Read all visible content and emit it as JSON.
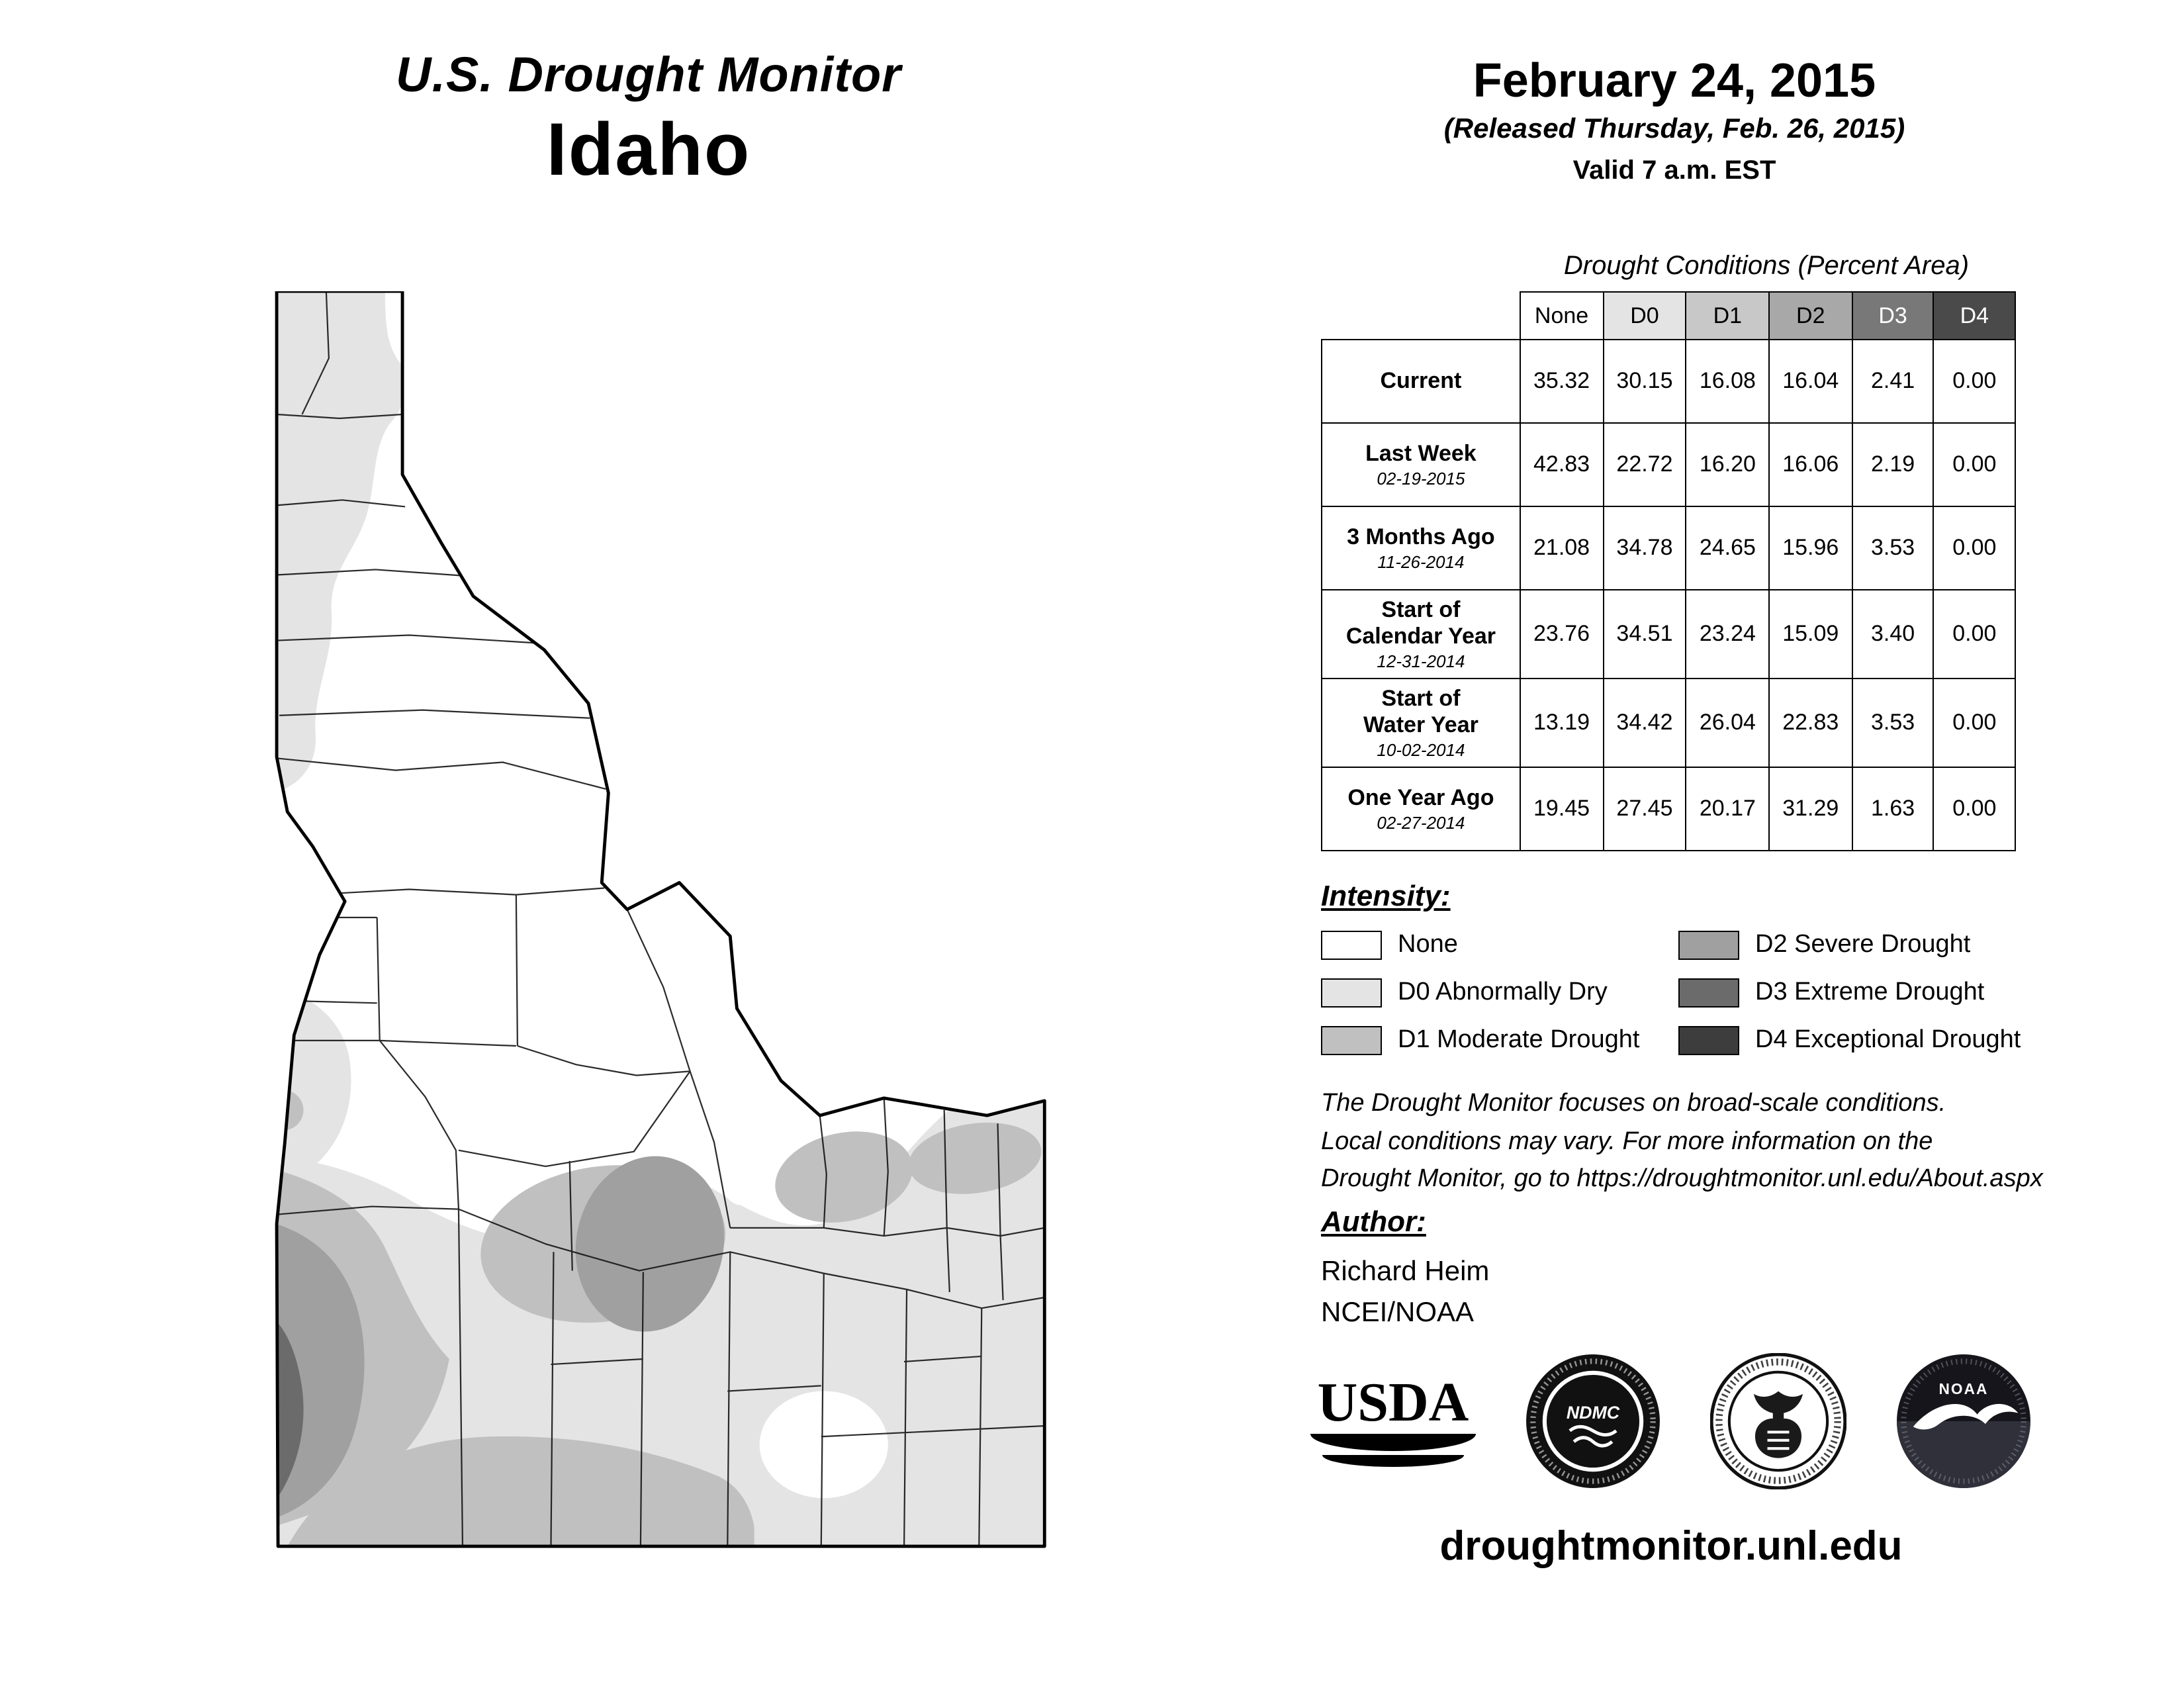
{
  "header": {
    "title": "U.S. Drought Monitor",
    "region": "Idaho",
    "date": "February 24, 2015",
    "released": "(Released Thursday, Feb. 26, 2015)",
    "valid": "Valid 7 a.m. EST"
  },
  "table": {
    "title": "Drought Conditions (Percent Area)",
    "columns": [
      {
        "label": "None",
        "bg": "#ffffff",
        "fg": "#000000"
      },
      {
        "label": "D0",
        "bg": "#e4e4e4",
        "fg": "#000000"
      },
      {
        "label": "D1",
        "bg": "#c8c8c8",
        "fg": "#000000"
      },
      {
        "label": "D2",
        "bg": "#a8a8a8",
        "fg": "#000000"
      },
      {
        "label": "D3",
        "bg": "#787878",
        "fg": "#ffffff"
      },
      {
        "label": "D4",
        "bg": "#4a4a4a",
        "fg": "#ffffff"
      }
    ],
    "rows": [
      {
        "label": "Current",
        "sublabel": "",
        "values": [
          "35.32",
          "30.15",
          "16.08",
          "16.04",
          "2.41",
          "0.00"
        ]
      },
      {
        "label": "Last Week",
        "sublabel": "02-19-2015",
        "values": [
          "42.83",
          "22.72",
          "16.20",
          "16.06",
          "2.19",
          "0.00"
        ]
      },
      {
        "label": "3 Months Ago",
        "sublabel": "11-26-2014",
        "values": [
          "21.08",
          "34.78",
          "24.65",
          "15.96",
          "3.53",
          "0.00"
        ]
      },
      {
        "label": "Start of\nCalendar Year",
        "sublabel": "12-31-2014",
        "values": [
          "23.76",
          "34.51",
          "23.24",
          "15.09",
          "3.40",
          "0.00"
        ]
      },
      {
        "label": "Start of\nWater Year",
        "sublabel": "10-02-2014",
        "values": [
          "13.19",
          "34.42",
          "26.04",
          "22.83",
          "3.53",
          "0.00"
        ]
      },
      {
        "label": "One Year Ago",
        "sublabel": "02-27-2014",
        "values": [
          "19.45",
          "27.45",
          "20.17",
          "31.29",
          "1.63",
          "0.00"
        ]
      }
    ]
  },
  "intensity": {
    "title": "Intensity:",
    "items": [
      {
        "label": "None",
        "color": "#ffffff"
      },
      {
        "label": "D0 Abnormally Dry",
        "color": "#e4e4e4"
      },
      {
        "label": "D1 Moderate Drought",
        "color": "#c0c0c0"
      },
      {
        "label": "D2 Severe Drought",
        "color": "#a0a0a0"
      },
      {
        "label": "D3 Extreme Drought",
        "color": "#6b6b6b"
      },
      {
        "label": "D4 Exceptional Drought",
        "color": "#3d3d3d"
      }
    ]
  },
  "disclaimer": "The Drought Monitor focuses on broad-scale conditions.\nLocal conditions may vary. For more information on the\nDrought Monitor, go to https://droughtmonitor.unl.edu/About.aspx",
  "author": {
    "title": "Author:",
    "name": "Richard Heim",
    "org": "NCEI/NOAA"
  },
  "logos": {
    "usda": "USDA",
    "ndmc": "NDMC",
    "noaa": "NOAA"
  },
  "footer": {
    "url": "droughtmonitor.unl.edu"
  }
}
